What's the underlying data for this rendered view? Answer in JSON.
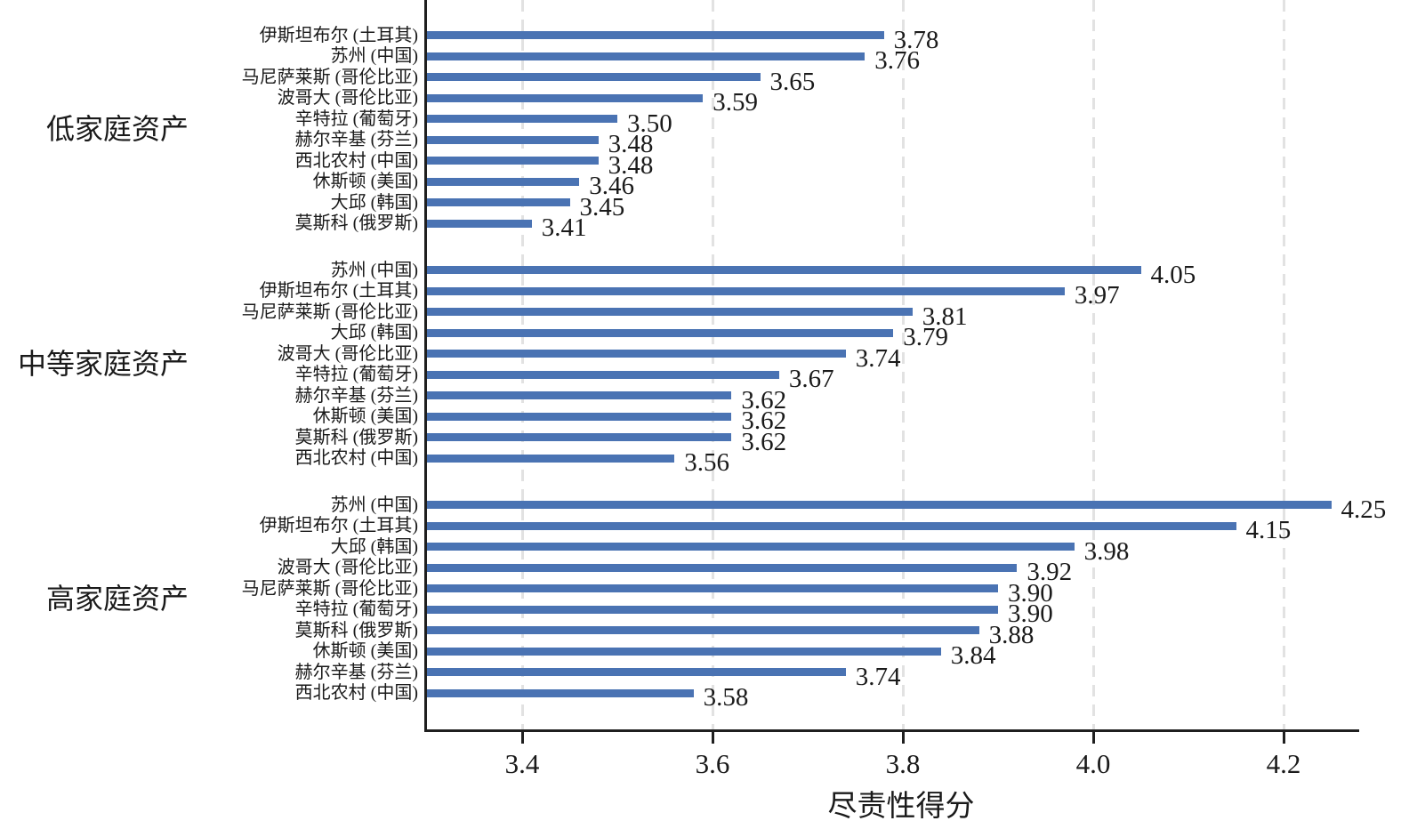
{
  "chart_data": {
    "type": "bar",
    "orientation": "horizontal",
    "title": "",
    "xlabel": "尽责性得分",
    "ylabel": "",
    "xlim": [
      3.3,
      4.3
    ],
    "grid": "vertical-dashed",
    "legend": "none",
    "bar_color": "#4a73b3",
    "axis_color": "#1f1f1f",
    "gridline_color": "#e2e2e2",
    "value_label_decimals": 2,
    "xticks": [
      {
        "label": "3.4",
        "value": 3.4
      },
      {
        "label": "3.6",
        "value": 3.6
      },
      {
        "label": "3.8",
        "value": 3.8
      },
      {
        "label": "4.0",
        "value": 4.0
      },
      {
        "label": "4.2",
        "value": 4.2
      }
    ],
    "groups": [
      {
        "label": "低家庭资产",
        "items": [
          {
            "city": "伊斯坦布尔 (土耳其)",
            "value": 3.78
          },
          {
            "city": "苏州 (中国)",
            "value": 3.76
          },
          {
            "city": "马尼萨莱斯 (哥伦比亚)",
            "value": 3.65
          },
          {
            "city": "波哥大 (哥伦比亚)",
            "value": 3.59
          },
          {
            "city": "辛特拉 (葡萄牙)",
            "value": 3.5
          },
          {
            "city": "赫尔辛基 (芬兰)",
            "value": 3.48
          },
          {
            "city": "西北农村 (中国)",
            "value": 3.48
          },
          {
            "city": "休斯顿 (美国)",
            "value": 3.46
          },
          {
            "city": "大邱 (韩国)",
            "value": 3.45
          },
          {
            "city": "莫斯科 (俄罗斯)",
            "value": 3.41
          }
        ]
      },
      {
        "label": "中等家庭资产",
        "items": [
          {
            "city": "苏州 (中国)",
            "value": 4.05
          },
          {
            "city": "伊斯坦布尔 (土耳其)",
            "value": 3.97
          },
          {
            "city": "马尼萨莱斯 (哥伦比亚)",
            "value": 3.81
          },
          {
            "city": "大邱 (韩国)",
            "value": 3.79
          },
          {
            "city": "波哥大 (哥伦比亚)",
            "value": 3.74
          },
          {
            "city": "辛特拉 (葡萄牙)",
            "value": 3.67
          },
          {
            "city": "赫尔辛基 (芬兰)",
            "value": 3.62
          },
          {
            "city": "休斯顿 (美国)",
            "value": 3.62
          },
          {
            "city": "莫斯科 (俄罗斯)",
            "value": 3.62
          },
          {
            "city": "西北农村 (中国)",
            "value": 3.56
          }
        ]
      },
      {
        "label": "高家庭资产",
        "items": [
          {
            "city": "苏州 (中国)",
            "value": 4.25
          },
          {
            "city": "伊斯坦布尔 (土耳其)",
            "value": 4.15
          },
          {
            "city": "大邱 (韩国)",
            "value": 3.98
          },
          {
            "city": "波哥大 (哥伦比亚)",
            "value": 3.92
          },
          {
            "city": "马尼萨莱斯 (哥伦比亚)",
            "value": 3.9
          },
          {
            "city": "辛特拉 (葡萄牙)",
            "value": 3.9
          },
          {
            "city": "莫斯科 (俄罗斯)",
            "value": 3.88
          },
          {
            "city": "休斯顿 (美国)",
            "value": 3.84
          },
          {
            "city": "赫尔辛基 (芬兰)",
            "value": 3.74
          },
          {
            "city": "西北农村 (中国)",
            "value": 3.58
          }
        ]
      }
    ]
  }
}
